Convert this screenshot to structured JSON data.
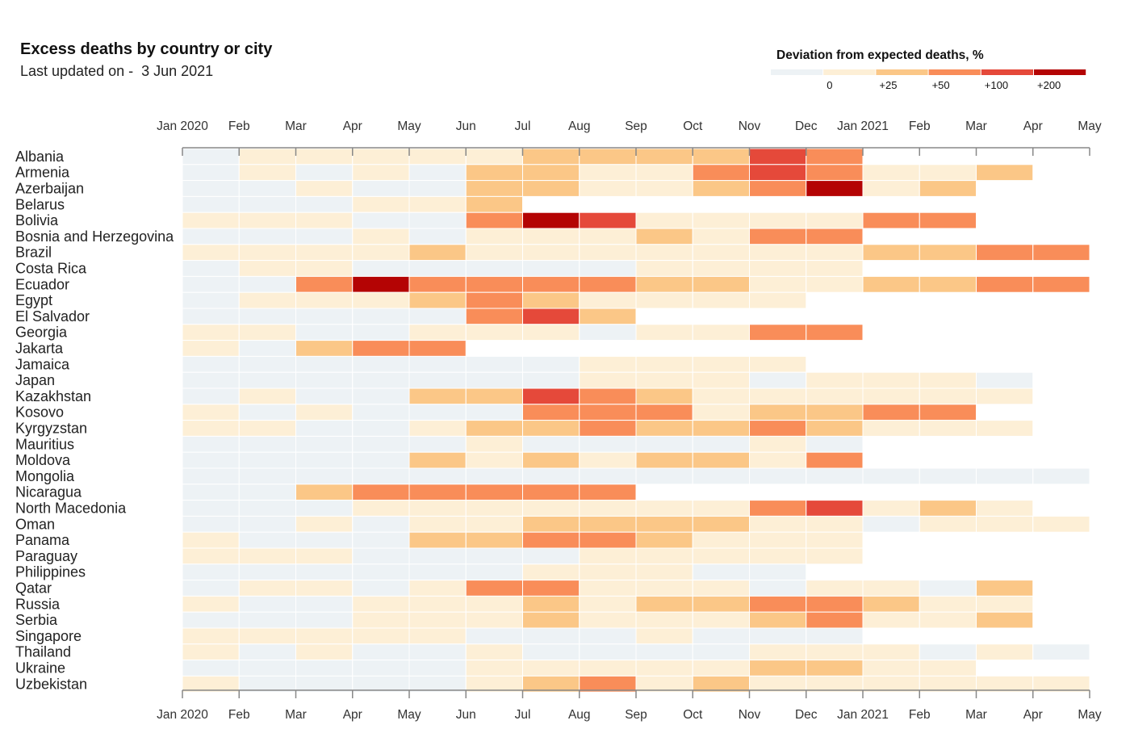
{
  "header": {
    "title": "Excess deaths by country or city",
    "subtitle": "Last updated on -  3 Jun 2021"
  },
  "legend": {
    "title": "Deviation from expected deaths, %",
    "bins": [
      {
        "color": "#edf2f5",
        "label": ""
      },
      {
        "color": "#fdefd6",
        "label": "0"
      },
      {
        "color": "#fbc787",
        "label": "+25"
      },
      {
        "color": "#f98d59",
        "label": "+50"
      },
      {
        "color": "#e5493a",
        "label": "+100"
      },
      {
        "color": "#b40404",
        "label": "+200"
      }
    ]
  },
  "chart_data": {
    "type": "heatmap",
    "x_ticks": [
      "Jan 2020",
      "Feb",
      "Mar",
      "Apr",
      "May",
      "Jun",
      "Jul",
      "Aug",
      "Sep",
      "Oct",
      "Nov",
      "Dec",
      "Jan 2021",
      "Feb",
      "Mar",
      "Apr",
      "May"
    ],
    "months": [
      "2020-01",
      "2020-02",
      "2020-03",
      "2020-04",
      "2020-05",
      "2020-06",
      "2020-07",
      "2020-08",
      "2020-09",
      "2020-10",
      "2020-11",
      "2020-12",
      "2021-01",
      "2021-02",
      "2021-03",
      "2021-04"
    ],
    "category_key": {
      "0": "below 0",
      "1": "0 to +25",
      "2": "+25 to +50",
      "3": "+50 to +100",
      "4": "+100 to +200",
      "5": "above +200"
    },
    "rows": [
      {
        "name": "Albania",
        "values": [
          0,
          1,
          1,
          1,
          1,
          1,
          2,
          2,
          2,
          2,
          4,
          3
        ]
      },
      {
        "name": "Armenia",
        "values": [
          0,
          1,
          0,
          1,
          0,
          2,
          2,
          1,
          1,
          3,
          4,
          3,
          1,
          1,
          2
        ]
      },
      {
        "name": "Azerbaijan",
        "values": [
          0,
          0,
          1,
          0,
          0,
          2,
          2,
          1,
          1,
          2,
          3,
          5,
          1,
          2
        ]
      },
      {
        "name": "Belarus",
        "values": [
          0,
          0,
          0,
          1,
          1,
          2
        ]
      },
      {
        "name": "Bolivia",
        "values": [
          1,
          1,
          1,
          0,
          0,
          3,
          5,
          4,
          1,
          1,
          1,
          1,
          3,
          3
        ]
      },
      {
        "name": "Bosnia and Herzegovina",
        "values": [
          0,
          0,
          0,
          1,
          0,
          1,
          1,
          1,
          2,
          1,
          3,
          3
        ]
      },
      {
        "name": "Brazil",
        "values": [
          1,
          1,
          1,
          1,
          2,
          1,
          1,
          1,
          1,
          1,
          1,
          1,
          2,
          2,
          3,
          3
        ]
      },
      {
        "name": "Costa Rica",
        "values": [
          0,
          1,
          1,
          0,
          0,
          0,
          0,
          0,
          1,
          1,
          1,
          1
        ]
      },
      {
        "name": "Ecuador",
        "values": [
          0,
          0,
          3,
          5,
          3,
          3,
          3,
          3,
          2,
          2,
          1,
          1,
          2,
          2,
          3,
          3
        ]
      },
      {
        "name": "Egypt",
        "values": [
          0,
          1,
          1,
          1,
          2,
          3,
          2,
          1,
          1,
          1,
          1
        ]
      },
      {
        "name": "El Salvador",
        "values": [
          0,
          0,
          0,
          0,
          0,
          3,
          4,
          2
        ]
      },
      {
        "name": "Georgia",
        "values": [
          1,
          1,
          0,
          0,
          1,
          1,
          1,
          0,
          1,
          1,
          3,
          3
        ]
      },
      {
        "name": "Jakarta",
        "values": [
          1,
          0,
          2,
          3,
          3
        ]
      },
      {
        "name": "Jamaica",
        "values": [
          0,
          0,
          0,
          0,
          0,
          0,
          0,
          1,
          1,
          1,
          1
        ]
      },
      {
        "name": "Japan",
        "values": [
          0,
          0,
          0,
          0,
          0,
          0,
          0,
          1,
          1,
          1,
          0,
          1,
          1,
          1,
          0
        ]
      },
      {
        "name": "Kazakhstan",
        "values": [
          0,
          1,
          0,
          0,
          2,
          2,
          4,
          3,
          2,
          1,
          1,
          1,
          1,
          1,
          1
        ]
      },
      {
        "name": "Kosovo",
        "values": [
          1,
          0,
          1,
          0,
          0,
          0,
          3,
          3,
          3,
          1,
          2,
          2,
          3,
          3
        ]
      },
      {
        "name": "Kyrgyzstan",
        "values": [
          1,
          1,
          0,
          0,
          1,
          2,
          2,
          3,
          2,
          2,
          3,
          2,
          1,
          1,
          1
        ]
      },
      {
        "name": "Mauritius",
        "values": [
          0,
          0,
          0,
          0,
          0,
          1,
          0,
          0,
          0,
          0,
          1,
          0
        ]
      },
      {
        "name": "Moldova",
        "values": [
          0,
          0,
          0,
          0,
          2,
          1,
          2,
          1,
          2,
          2,
          1,
          3
        ]
      },
      {
        "name": "Mongolia",
        "values": [
          0,
          0,
          0,
          0,
          0,
          0,
          0,
          0,
          0,
          0,
          0,
          0,
          0,
          0,
          0,
          0
        ]
      },
      {
        "name": "Nicaragua",
        "values": [
          0,
          0,
          2,
          3,
          3,
          3,
          3,
          3
        ]
      },
      {
        "name": "North Macedonia",
        "values": [
          0,
          0,
          0,
          1,
          1,
          1,
          1,
          1,
          1,
          1,
          3,
          4,
          1,
          2,
          1
        ]
      },
      {
        "name": "Oman",
        "values": [
          0,
          0,
          1,
          0,
          1,
          1,
          2,
          2,
          2,
          2,
          1,
          1,
          0,
          1,
          1,
          1
        ]
      },
      {
        "name": "Panama",
        "values": [
          1,
          0,
          0,
          0,
          2,
          2,
          3,
          3,
          2,
          1,
          1,
          1
        ]
      },
      {
        "name": "Paraguay",
        "values": [
          1,
          1,
          1,
          0,
          0,
          0,
          0,
          1,
          1,
          1,
          1,
          1
        ]
      },
      {
        "name": "Philippines",
        "values": [
          0,
          0,
          0,
          0,
          0,
          0,
          1,
          1,
          1,
          0,
          0
        ]
      },
      {
        "name": "Qatar",
        "values": [
          0,
          1,
          1,
          0,
          1,
          3,
          3,
          1,
          1,
          1,
          0,
          1,
          1,
          0,
          2
        ]
      },
      {
        "name": "Russia",
        "values": [
          1,
          0,
          0,
          1,
          1,
          1,
          2,
          1,
          2,
          2,
          3,
          3,
          2,
          1,
          1
        ]
      },
      {
        "name": "Serbia",
        "values": [
          0,
          0,
          0,
          1,
          1,
          1,
          2,
          1,
          1,
          1,
          2,
          3,
          1,
          1,
          2
        ]
      },
      {
        "name": "Singapore",
        "values": [
          1,
          1,
          1,
          1,
          1,
          0,
          0,
          0,
          1,
          0,
          0,
          0
        ]
      },
      {
        "name": "Thailand",
        "values": [
          1,
          0,
          1,
          0,
          0,
          1,
          0,
          0,
          0,
          0,
          1,
          1,
          1,
          0,
          1,
          0
        ]
      },
      {
        "name": "Ukraine",
        "values": [
          0,
          0,
          0,
          0,
          0,
          1,
          1,
          1,
          1,
          1,
          2,
          2,
          1,
          1
        ]
      },
      {
        "name": "Uzbekistan",
        "values": [
          1,
          0,
          0,
          0,
          0,
          1,
          2,
          3,
          1,
          2,
          1,
          1,
          1,
          1,
          1,
          1
        ]
      }
    ]
  }
}
